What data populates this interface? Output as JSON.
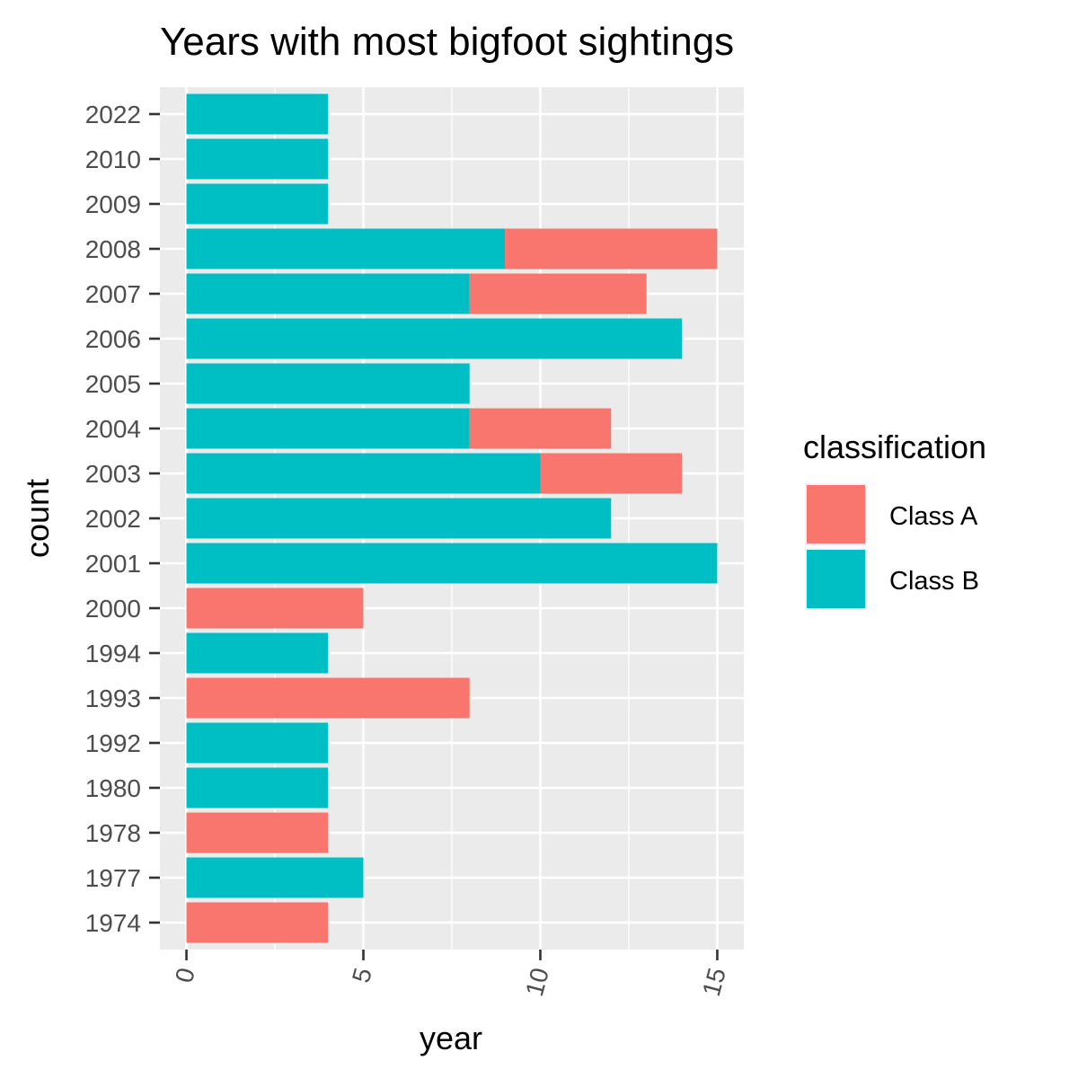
{
  "chart_data": {
    "type": "bar",
    "orientation": "horizontal",
    "stacked": true,
    "title": "Years with most bigfoot sightings",
    "xlabel": "year",
    "ylabel": "count",
    "categories": [
      "1974",
      "1977",
      "1978",
      "1980",
      "1992",
      "1993",
      "1994",
      "2000",
      "2001",
      "2002",
      "2003",
      "2004",
      "2005",
      "2006",
      "2007",
      "2008",
      "2009",
      "2010",
      "2022"
    ],
    "series": [
      {
        "name": "Class A",
        "color": "#F8766D",
        "values": [
          4,
          0,
          4,
          0,
          0,
          8,
          0,
          5,
          0,
          0,
          4,
          4,
          0,
          0,
          5,
          6,
          0,
          0,
          0
        ]
      },
      {
        "name": "Class B",
        "color": "#00BFC4",
        "values": [
          0,
          5,
          0,
          4,
          4,
          0,
          4,
          0,
          15,
          12,
          10,
          8,
          8,
          14,
          8,
          9,
          4,
          4,
          4
        ]
      }
    ],
    "xlim": [
      -0.75,
      15.75
    ],
    "x_ticks": [
      "0",
      "5",
      "10",
      "15"
    ],
    "x_tick_values": [
      0,
      5,
      10,
      15
    ],
    "grid": true,
    "legend": {
      "title": "classification",
      "position": "right"
    }
  }
}
